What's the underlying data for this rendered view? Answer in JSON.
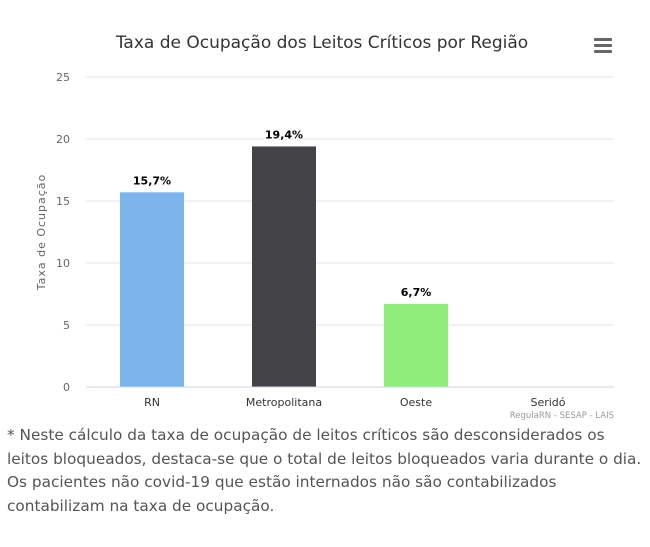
{
  "chart_data": {
    "type": "bar",
    "title": "Taxa de Ocupação dos Leitos Críticos por Região",
    "ylabel": "Taxa de Ocupação",
    "xlabel": "",
    "categories": [
      "RN",
      "Metropolitana",
      "Oeste",
      "Seridó"
    ],
    "values": [
      15.7,
      19.4,
      6.7,
      0
    ],
    "data_labels": [
      "15,7%",
      "19,4%",
      "6,7%",
      ""
    ],
    "bar_colors": [
      "#7cb5ec",
      "#434348",
      "#90ed7d",
      "#f7a35c"
    ],
    "ylim": [
      0,
      25
    ],
    "yticks": [
      "0",
      "5",
      "10",
      "15",
      "20",
      "25"
    ],
    "grid": true,
    "legend": "none",
    "credits": "RegulaRN - SESAP - LAIS"
  },
  "menu": {
    "icon": "hamburger-menu-icon"
  },
  "footnote": "* Neste cálculo da taxa de ocupação de leitos críticos são desconsiderados os leitos bloqueados, destaca-se que o total de leitos bloqueados varia durante o dia. Os pacientes não covid-19 que estão internados não são contabilizados contabilizam na taxa de ocupação."
}
